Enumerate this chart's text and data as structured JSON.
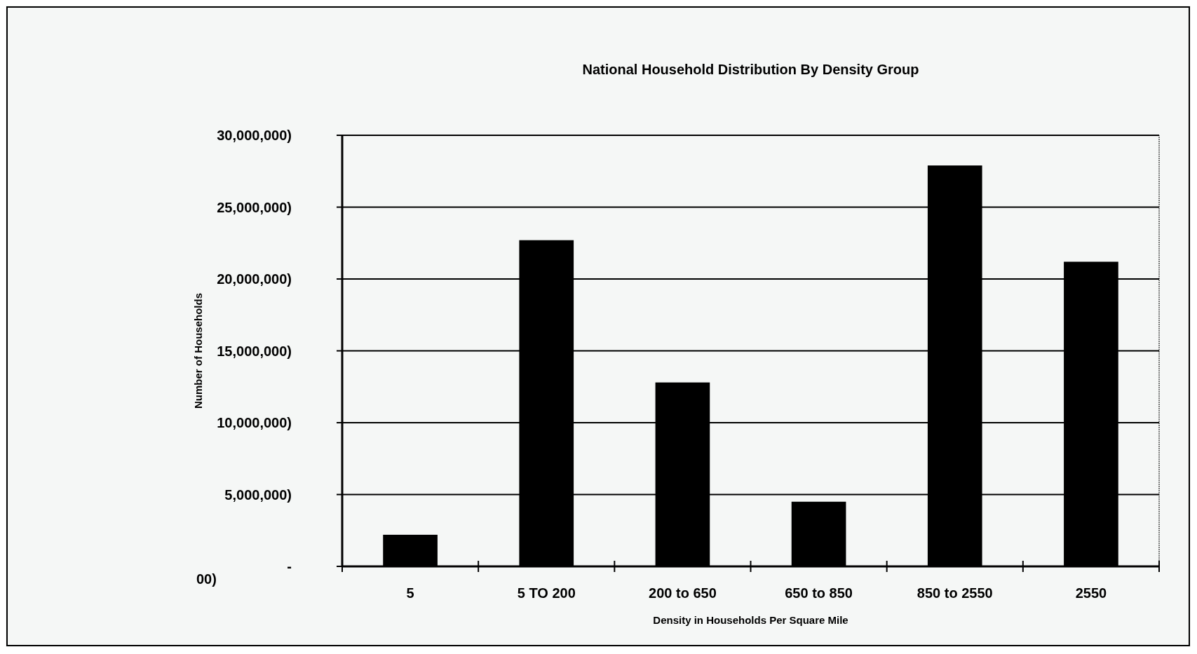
{
  "chart_data": {
    "type": "bar",
    "title": "National Household Distribution By Density Group",
    "xlabel": "Density in Households Per Square Mile",
    "ylabel": "Number of Households",
    "categories": [
      "5",
      "5 TO 200",
      "200 to 650",
      "650 to 850",
      "850 to 2550",
      "2550"
    ],
    "values": [
      2200000,
      22700000,
      12800000,
      4500000,
      27900000,
      21200000
    ],
    "color": "#000000",
    "ylim": [
      0,
      30000000
    ],
    "yticks": [
      {
        "value": 0,
        "label": "-"
      },
      {
        "value": 5000000,
        "label": "5,000,000)"
      },
      {
        "value": 10000000,
        "label": "10,000,000)"
      },
      {
        "value": 15000000,
        "label": "15,000,000)"
      },
      {
        "value": 20000000,
        "label": "20,000,000)"
      },
      {
        "value": 25000000,
        "label": "25,000,000)"
      },
      {
        "value": 30000000,
        "label": "30,000,000)"
      }
    ],
    "grid": "y",
    "annotations": [
      "00)"
    ]
  }
}
